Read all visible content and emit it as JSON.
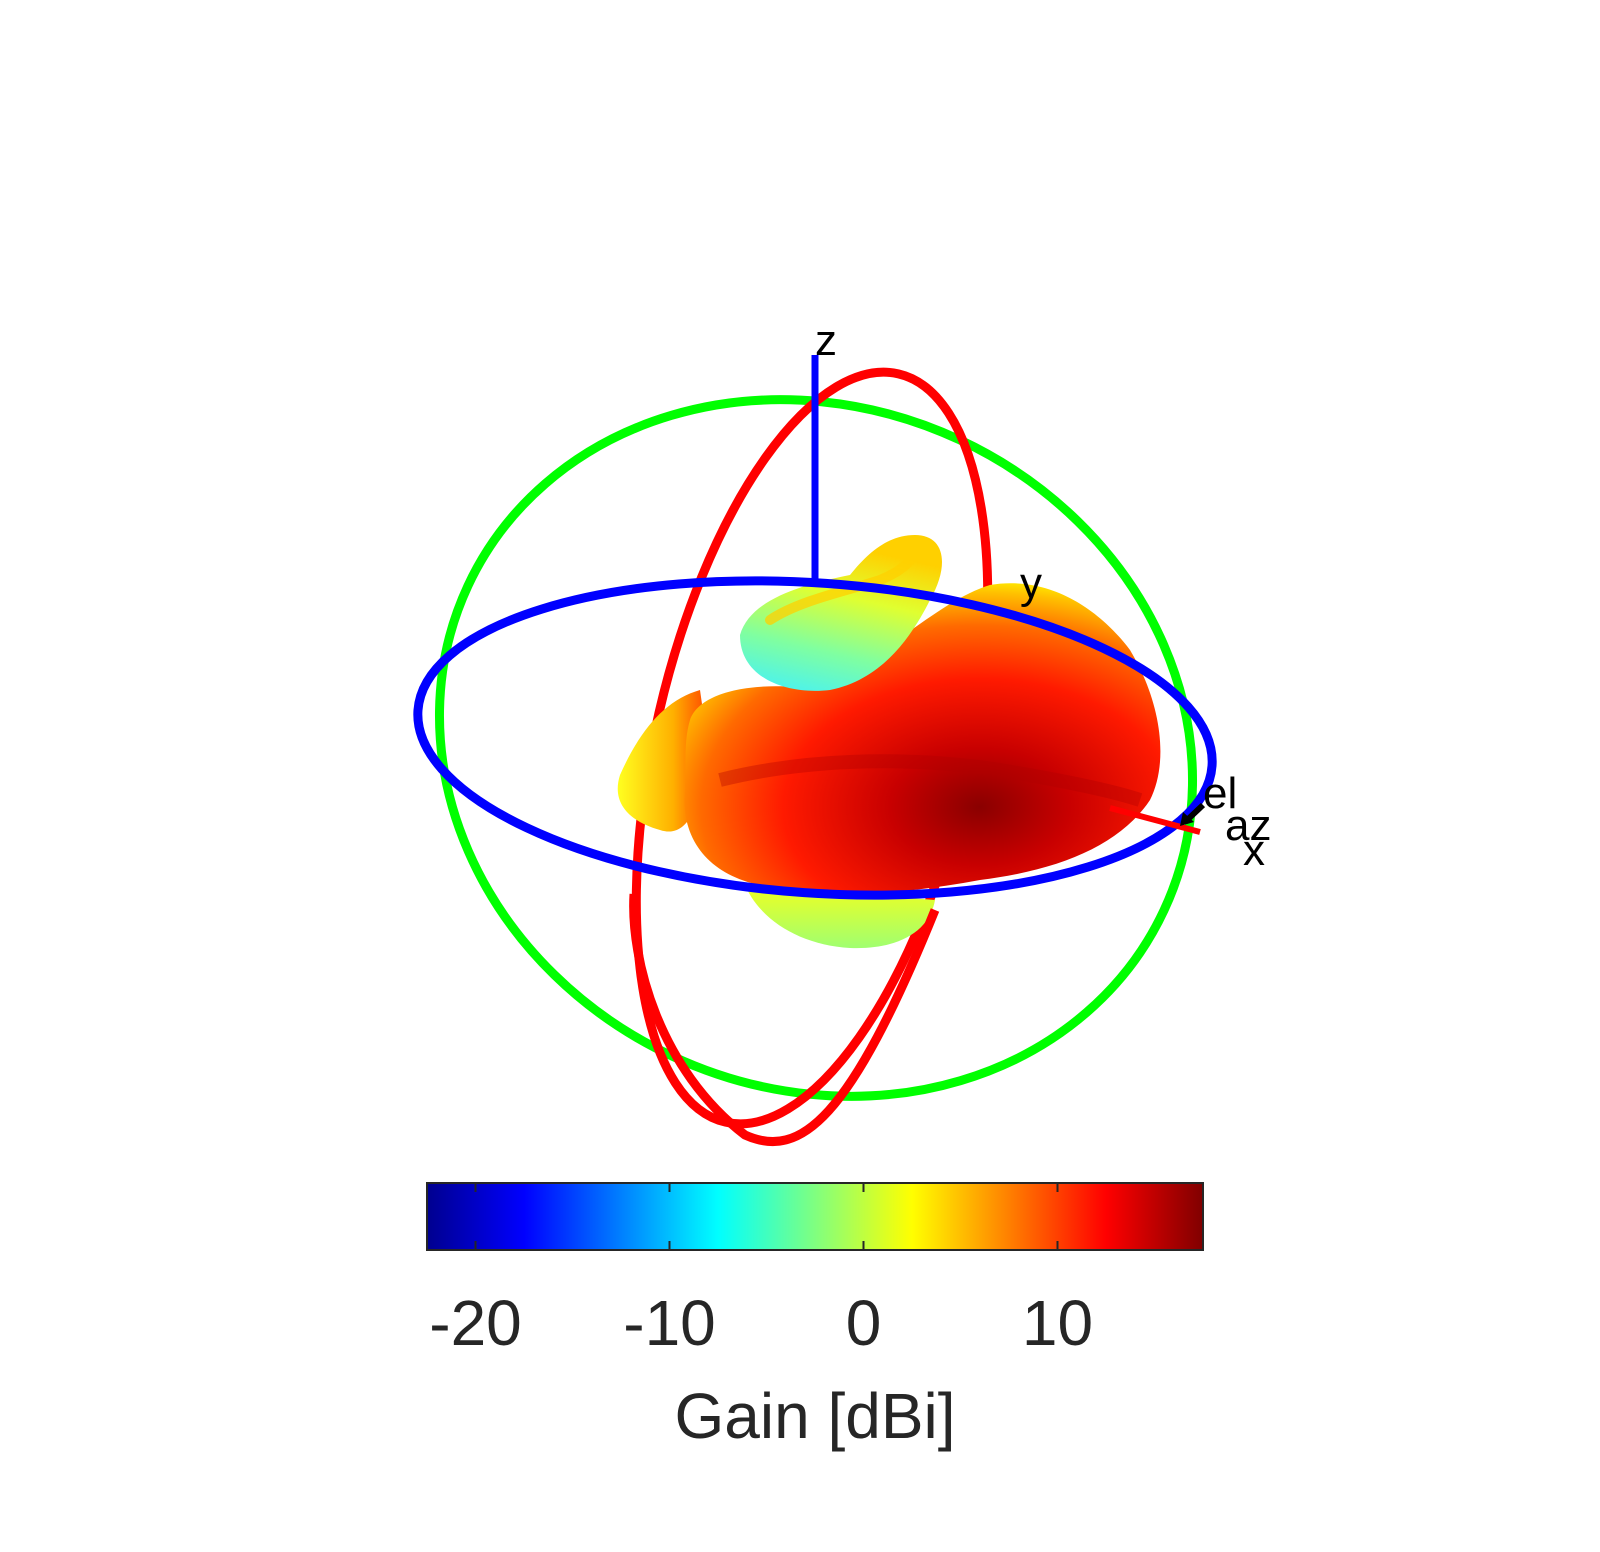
{
  "chart_data": {
    "type": "3d-radiation-pattern",
    "colormap": "jet",
    "axis_letters": {
      "z": "z",
      "y": "y",
      "x": "x",
      "el": "el",
      "az": "az"
    },
    "colorbar": {
      "label": "Gain [dBi]",
      "range": [
        -22.5,
        17.5
      ],
      "ticks": [
        -20,
        -10,
        0,
        10
      ],
      "tick_labels": [
        "-20",
        "-10",
        "0",
        "10"
      ]
    },
    "great_circle_colors": {
      "xy_plane": "#0000ff",
      "xz_plane": "#00ff00",
      "yz_plane": "#ff0000"
    },
    "max_gain_dBi": 17
  }
}
